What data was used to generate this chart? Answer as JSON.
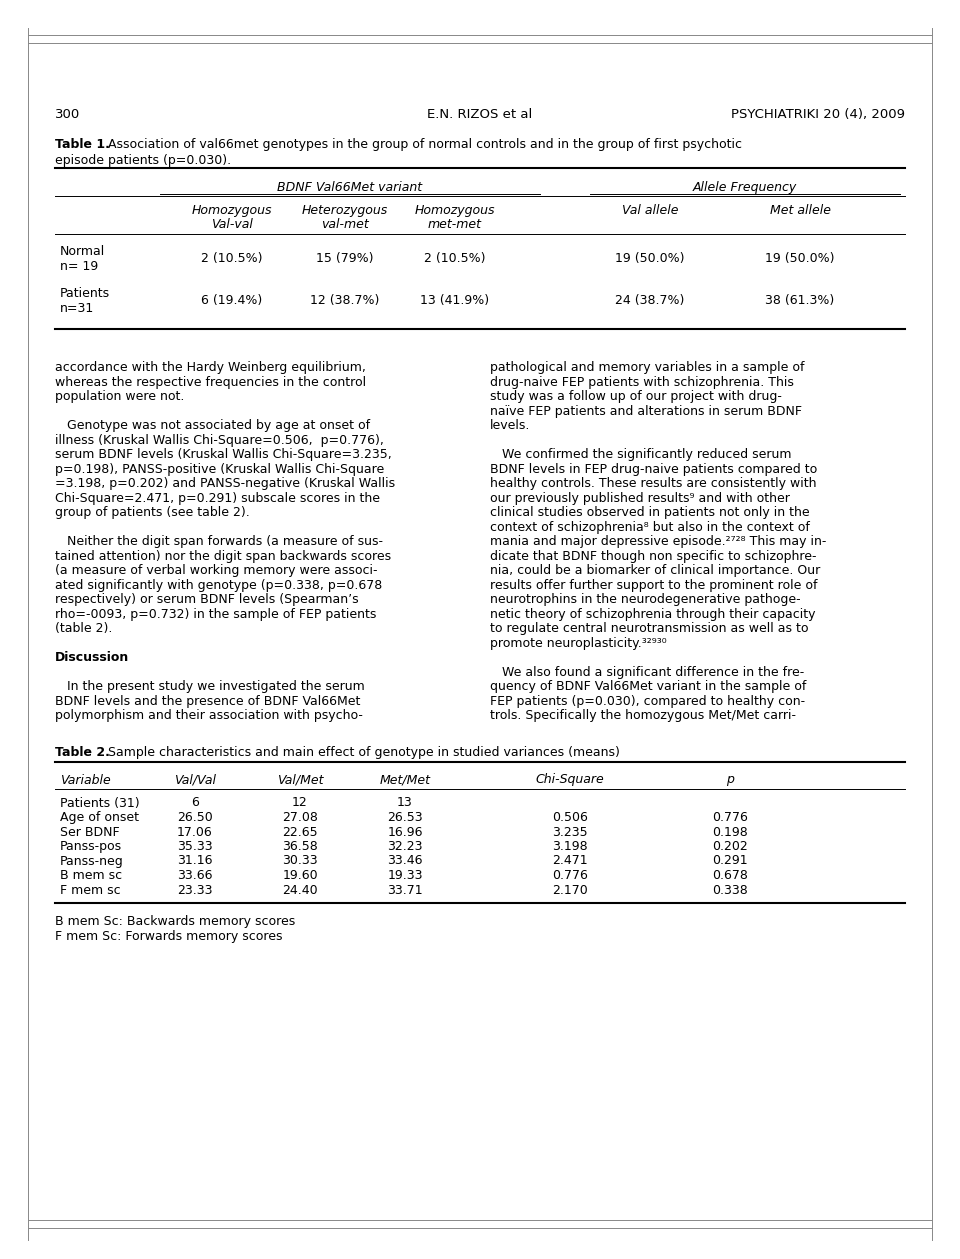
{
  "page_number": "300",
  "center_header": "E.N. RIZOS et al",
  "right_header": "PSYCHIATRIKI 20 (4), 2009",
  "table1_title_bold": "Table 1.",
  "table1_title_rest": " Association of val66met genotypes in the group of normal controls and in the group of first psychotic",
  "table1_title_line2": "episode patients (p=0.030).",
  "table1_col_group1": "BDNF Val66Met variant",
  "table1_col_group2": "Allele Frequency",
  "table1_subheaders_line1": [
    "Homozygous",
    "Heterozygous",
    "Homozygous",
    "Val allele",
    "Met allele"
  ],
  "table1_subheaders_line2": [
    "Val-val",
    "val-met",
    "met-met",
    "",
    ""
  ],
  "table1_row1_label1": "Normal",
  "table1_row1_label2": "n= 19",
  "table1_row2_label1": "Patients",
  "table1_row2_label2": "n=31",
  "table1_row1_data": [
    "2 (10.5%)",
    "15 (79%)",
    "2 (10.5%)",
    "19 (50.0%)",
    "19 (50.0%)"
  ],
  "table1_row2_data": [
    "6 (19.4%)",
    "12 (38.7%)",
    "13 (41.9%)",
    "24 (38.7%)",
    "38 (61.3%)"
  ],
  "body_text_left": [
    "accordance with the Hardy Weinberg equilibrium,",
    "whereas the respective frequencies in the control",
    "population were not.",
    "",
    "   Genotype was not associated by age at onset of",
    "illness (Kruskal Wallis Chi-Square=0.506,  p=0.776),",
    "serum BDNF levels (Kruskal Wallis Chi-Square=3.235,",
    "p=0.198), PANSS-positive (Kruskal Wallis Chi-Square",
    "=3.198, p=0.202) and PANSS-negative (Kruskal Wallis",
    "Chi-Square=2.471, p=0.291) subscale scores in the",
    "group of patients (see table 2).",
    "",
    "   Neither the digit span forwards (a measure of sus-",
    "tained attention) nor the digit span backwards scores",
    "(a measure of verbal working memory were associ-",
    "ated significantly with genotype (p=0.338, p=0.678",
    "respectively) or serum BDNF levels (Spearman’s",
    "rho=-0093, p=0.732) in the sample of FEP patients",
    "(table 2).",
    "",
    "Discussion",
    "",
    "   In the present study we investigated the serum",
    "BDNF levels and the presence of BDNF Val66Met",
    "polymorphism and their association with psycho-"
  ],
  "body_text_right": [
    "pathological and memory variables in a sample of",
    "drug-naive FEP patients with schizophrenia. This",
    "study was a follow up of our project with drug-",
    "naïve FEP patients and alterations in serum BDNF",
    "levels.",
    "",
    "   We confirmed the significantly reduced serum",
    "BDNF levels in FEP drug-naive patients compared to",
    "healthy controls. These results are consistently with",
    "our previously published results⁹ and with other",
    "clinical studies observed in patients not only in the",
    "context of schizophrenia⁸ but also in the context of",
    "mania and major depressive episode.²⁷²⁸ This may in-",
    "dicate that BDNF though non specific to schizophre-",
    "nia, could be a biomarker of clinical importance. Our",
    "results offer further support to the prominent role of",
    "neurotrophins in the neurodegenerative pathoge-",
    "netic theory of schizophrenia through their capacity",
    "to regulate central neurotransmission as well as to",
    "promote neuroplasticity.³²⁹³⁰",
    "",
    "   We also found a significant difference in the fre-",
    "quency of BDNF Val66Met variant in the sample of",
    "FEP patients (p=0.030), compared to healthy con-",
    "trols. Specifically the homozygous Met/Met carri-"
  ],
  "table2_title_bold": "Table 2.",
  "table2_title_rest": " Sample characteristics and main effect of genotype in studied variances (means)",
  "table2_headers": [
    "Variable",
    "Val/Val",
    "Val/Met",
    "Met/Met",
    "Chi-Square",
    "p"
  ],
  "table2_rows": [
    [
      "Patients (31)",
      "6",
      "12",
      "13",
      "",
      ""
    ],
    [
      "Age of onset",
      "26.50",
      "27.08",
      "26.53",
      "0.506",
      "0.776"
    ],
    [
      "Ser BDNF",
      "17.06",
      "22.65",
      "16.96",
      "3.235",
      "0.198"
    ],
    [
      "Panss-pos",
      "35.33",
      "36.58",
      "32.23",
      "3.198",
      "0.202"
    ],
    [
      "Panss-neg",
      "31.16",
      "30.33",
      "33.46",
      "2.471",
      "0.291"
    ],
    [
      "B mem sc",
      "33.66",
      "19.60",
      "19.33",
      "0.776",
      "0.678"
    ],
    [
      "F mem sc",
      "23.33",
      "24.40",
      "33.71",
      "2.170",
      "0.338"
    ]
  ],
  "table2_footnotes": [
    "B mem Sc: Backwards memory scores",
    "F mem Sc: Forwards memory scores"
  ],
  "bg_color": "#ffffff",
  "text_color": "#000000"
}
